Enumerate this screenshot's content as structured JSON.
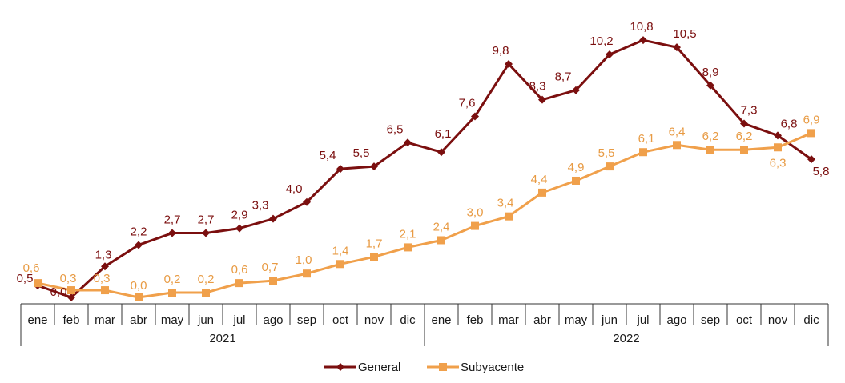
{
  "chart_data": {
    "type": "line",
    "categories": [
      "ene",
      "feb",
      "mar",
      "abr",
      "may",
      "jun",
      "jul",
      "ago",
      "sep",
      "oct",
      "nov",
      "dic",
      "ene",
      "feb",
      "mar",
      "abr",
      "may",
      "jun",
      "jul",
      "ago",
      "sep",
      "oct",
      "nov",
      "dic"
    ],
    "years": [
      "2021",
      "2022"
    ],
    "series": [
      {
        "name": "General",
        "color": "#7b0f0f",
        "marker": "diamond",
        "values": [
          0.5,
          0.0,
          1.3,
          2.2,
          2.7,
          2.7,
          2.9,
          3.3,
          4.0,
          5.4,
          5.5,
          6.5,
          6.1,
          7.6,
          9.8,
          8.3,
          8.7,
          10.2,
          10.8,
          10.5,
          8.9,
          7.3,
          6.8,
          5.8
        ],
        "labels": [
          "0,5",
          "0,0",
          "1,3",
          "2,2",
          "2,7",
          "2,7",
          "2,9",
          "3,3",
          "4,0",
          "5,4",
          "5,5",
          "6,5",
          "6,1",
          "7,6",
          "9,8",
          "8,3",
          "8,7",
          "10,2",
          "10,8",
          "10,5",
          "8,9",
          "7,3",
          "6,8",
          "5,8"
        ]
      },
      {
        "name": "Subyacente",
        "color": "#f0a04b",
        "marker": "square",
        "values": [
          0.6,
          0.3,
          0.3,
          0.0,
          0.2,
          0.2,
          0.6,
          0.7,
          1.0,
          1.4,
          1.7,
          2.1,
          2.4,
          3.0,
          3.4,
          4.4,
          4.9,
          5.5,
          6.1,
          6.4,
          6.2,
          6.2,
          6.3,
          6.9
        ],
        "labels": [
          "0,6",
          "0,3",
          "0,3",
          "0,0",
          "0,2",
          "0,2",
          "0,6",
          "0,7",
          "1,0",
          "1,4",
          "1,7",
          "2,1",
          "2,4",
          "3,0",
          "3,4",
          "4,4",
          "4,9",
          "5,5",
          "6,1",
          "6,4",
          "6,2",
          "6,2",
          "6,3",
          "6,9"
        ]
      }
    ],
    "ylim": [
      0,
      11.5
    ],
    "grid": false,
    "legend": "bottom"
  }
}
